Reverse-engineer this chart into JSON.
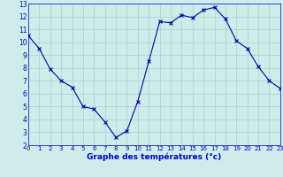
{
  "x": [
    0,
    1,
    2,
    3,
    4,
    5,
    6,
    7,
    8,
    9,
    10,
    11,
    12,
    13,
    14,
    15,
    16,
    17,
    18,
    19,
    20,
    21,
    22,
    23
  ],
  "y": [
    10.5,
    9.5,
    7.9,
    7.0,
    6.5,
    5.0,
    4.8,
    3.8,
    2.6,
    3.1,
    5.4,
    8.5,
    11.6,
    11.5,
    12.1,
    11.9,
    12.5,
    12.7,
    11.8,
    10.1,
    9.5,
    8.1,
    7.0,
    6.4
  ],
  "line_color": "#0000aa",
  "marker": "x",
  "marker_size": 2.5,
  "bg_color": "#d0ecea",
  "grid_color": "#b0d4d0",
  "xlabel": "Graphe des températures (°c)",
  "xlabel_color": "#0000cc",
  "tick_color": "#0000cc",
  "xlim": [
    0,
    23
  ],
  "ylim": [
    2,
    13
  ],
  "yticks": [
    2,
    3,
    4,
    5,
    6,
    7,
    8,
    9,
    10,
    11,
    12,
    13
  ],
  "xticks": [
    0,
    1,
    2,
    3,
    4,
    5,
    6,
    7,
    8,
    9,
    10,
    11,
    12,
    13,
    14,
    15,
    16,
    17,
    18,
    19,
    20,
    21,
    22,
    23
  ]
}
